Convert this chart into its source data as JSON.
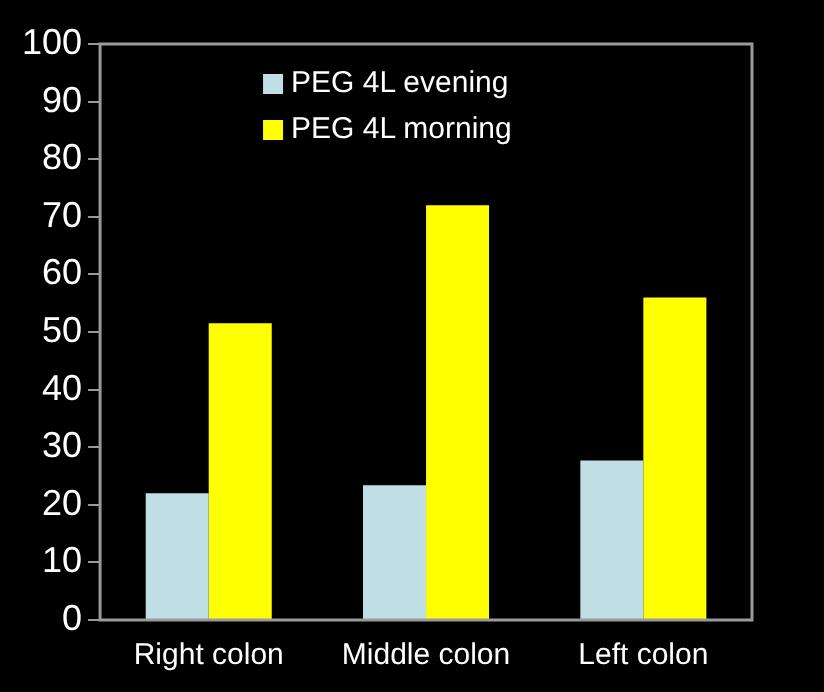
{
  "chart_data": {
    "type": "bar",
    "categories": [
      "Right colon",
      "Middle colon",
      "Left colon"
    ],
    "series": [
      {
        "name": "PEG 4L evening",
        "color": "#c0dfe4",
        "values": [
          22,
          23.4,
          27.7
        ]
      },
      {
        "name": "PEG 4L morning",
        "color": "#ffff00",
        "values": [
          51.5,
          72,
          56
        ]
      }
    ],
    "ylim": [
      0,
      100
    ],
    "yticks": [
      0,
      10,
      20,
      30,
      40,
      50,
      60,
      70,
      80,
      90,
      100
    ],
    "grid": false,
    "legend": "top"
  }
}
